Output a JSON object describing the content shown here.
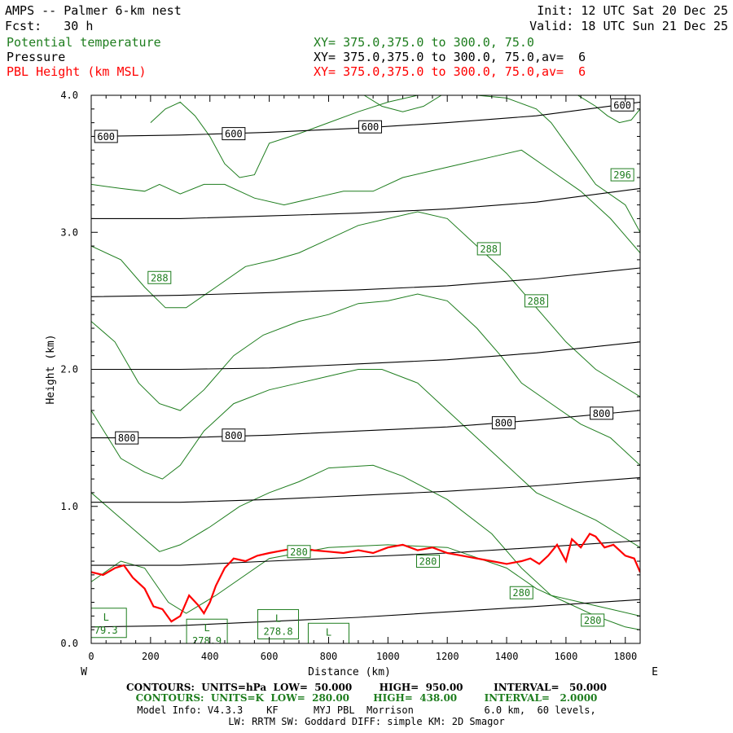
{
  "header": {
    "title": "AMPS -- Palmer 6-km nest",
    "fcst": "Fcst:   30 h",
    "init": "Init: 12 UTC Sat 20 Dec 25",
    "valid": "Valid: 18 UTC Sun 21 Dec 25",
    "field1_name": "Potential temperature",
    "field1_xy": "XY= 375.0,375.0 to 300.0, 75.0",
    "field2_name": "Pressure",
    "field2_xy": "XY= 375.0,375.0 to 300.0, 75.0,av=  6",
    "field3_name": "PBL Height (km MSL)",
    "field3_xy": "XY= 375.0,375.0 to 300.0, 75.0,av=  6"
  },
  "footer": {
    "line1": "CONTOURS:  UNITS=hPa  LOW=  50.000        HIGH=  950.00         INTERVAL=   50.000",
    "line2": "CONTOURS:  UNITS=K  LOW=  280.00       HIGH=  438.00        INTERVAL=   2.0000",
    "line3": "Model Info: V4.3.3    KF      MYJ PBL  Morrison            6.0 km,  60 levels,",
    "line4": "LW: RRTM SW: Goddard DIFF: simple KM: 2D Smagor"
  },
  "colors": {
    "pressure": "#000000",
    "theta": "#1e7d1e",
    "pbl": "#ff0000"
  },
  "chart_data": {
    "type": "line",
    "xlabel": "Distance (km)",
    "ylabel": "Height (km)",
    "xlim": [
      0,
      1850
    ],
    "ylim": [
      0,
      4.0
    ],
    "x_ticks": [
      0,
      200,
      400,
      600,
      800,
      1000,
      1200,
      1400,
      1600,
      1800
    ],
    "x_tick_labels": [
      "0",
      "200",
      "400",
      "600",
      "800",
      "1000",
      "1200",
      "1400",
      "1600",
      "1800"
    ],
    "y_ticks": [
      0,
      1,
      2,
      3,
      4
    ],
    "y_tick_labels": [
      "0.0",
      "1.0",
      "2.0",
      "3.0",
      "4.0"
    ],
    "left_end_label": "W",
    "right_end_label": "E",
    "pressure_contours": [
      {
        "x": [
          0,
          300,
          600,
          900,
          1200,
          1500,
          1850
        ],
        "y": [
          0.12,
          0.13,
          0.16,
          0.19,
          0.23,
          0.27,
          0.32
        ]
      },
      {
        "x": [
          0,
          300,
          600,
          900,
          1200,
          1500,
          1850
        ],
        "y": [
          0.57,
          0.57,
          0.6,
          0.63,
          0.66,
          0.7,
          0.75
        ]
      },
      {
        "x": [
          0,
          300,
          600,
          900,
          1200,
          1500,
          1850
        ],
        "y": [
          1.03,
          1.03,
          1.05,
          1.08,
          1.11,
          1.15,
          1.21
        ]
      },
      {
        "x": [
          0,
          300,
          600,
          900,
          1200,
          1500,
          1850
        ],
        "y": [
          1.5,
          1.5,
          1.52,
          1.55,
          1.58,
          1.63,
          1.7
        ]
      },
      {
        "x": [
          0,
          300,
          600,
          900,
          1200,
          1500,
          1850
        ],
        "y": [
          2.0,
          2.0,
          2.01,
          2.04,
          2.07,
          2.12,
          2.2
        ]
      },
      {
        "x": [
          0,
          300,
          600,
          900,
          1200,
          1500,
          1850
        ],
        "y": [
          2.53,
          2.54,
          2.56,
          2.58,
          2.61,
          2.66,
          2.74
        ]
      },
      {
        "x": [
          0,
          300,
          600,
          900,
          1200,
          1500,
          1850
        ],
        "y": [
          3.1,
          3.1,
          3.12,
          3.14,
          3.17,
          3.22,
          3.32
        ]
      },
      {
        "x": [
          0,
          300,
          600,
          900,
          1200,
          1500,
          1850
        ],
        "y": [
          3.7,
          3.71,
          3.73,
          3.76,
          3.8,
          3.85,
          3.95
        ]
      }
    ],
    "pressure_labels": [
      {
        "text": "600",
        "x": 50,
        "y": 3.7
      },
      {
        "text": "600",
        "x": 480,
        "y": 3.72
      },
      {
        "text": "600",
        "x": 940,
        "y": 3.77
      },
      {
        "text": "600",
        "x": 1790,
        "y": 3.93
      },
      {
        "text": "800",
        "x": 120,
        "y": 1.5
      },
      {
        "text": "800",
        "x": 480,
        "y": 1.52
      },
      {
        "text": "800",
        "x": 1390,
        "y": 1.61
      },
      {
        "text": "800",
        "x": 1720,
        "y": 1.68
      }
    ],
    "theta_contours": [
      {
        "x": [
          0,
          100,
          180,
          260,
          320,
          420,
          600,
          800,
          1000,
          1200,
          1400,
          1500,
          1600,
          1700,
          1800,
          1850
        ],
        "y": [
          0.45,
          0.6,
          0.55,
          0.3,
          0.22,
          0.35,
          0.62,
          0.7,
          0.72,
          0.7,
          0.55,
          0.4,
          0.3,
          0.2,
          0.12,
          0.1
        ]
      },
      {
        "x": [
          0,
          80,
          160,
          230,
          300,
          400,
          500,
          600,
          700,
          800,
          950,
          1050,
          1200,
          1350,
          1450,
          1550,
          1650,
          1750,
          1850
        ],
        "y": [
          1.1,
          0.95,
          0.8,
          0.67,
          0.72,
          0.85,
          1.0,
          1.1,
          1.18,
          1.28,
          1.3,
          1.22,
          1.05,
          0.8,
          0.55,
          0.35,
          0.3,
          0.25,
          0.2
        ]
      },
      {
        "x": [
          0,
          100,
          180,
          240,
          300,
          380,
          480,
          600,
          700,
          800,
          900,
          980,
          1100,
          1200,
          1300,
          1400,
          1500,
          1600,
          1700,
          1850
        ],
        "y": [
          1.7,
          1.35,
          1.25,
          1.2,
          1.3,
          1.55,
          1.75,
          1.85,
          1.9,
          1.95,
          2.0,
          2.0,
          1.9,
          1.7,
          1.5,
          1.3,
          1.1,
          1.0,
          0.9,
          0.7
        ]
      },
      {
        "x": [
          0,
          80,
          160,
          230,
          300,
          380,
          480,
          580,
          700,
          800,
          900,
          1000,
          1100,
          1200,
          1300,
          1380,
          1450,
          1550,
          1650,
          1750,
          1850
        ],
        "y": [
          2.35,
          2.2,
          1.9,
          1.75,
          1.7,
          1.85,
          2.1,
          2.25,
          2.35,
          2.4,
          2.48,
          2.5,
          2.55,
          2.5,
          2.3,
          2.1,
          1.9,
          1.75,
          1.6,
          1.5,
          1.3
        ]
      },
      {
        "x": [
          0,
          100,
          180,
          250,
          320,
          420,
          520,
          620,
          700,
          800,
          900,
          1000,
          1100,
          1200,
          1300,
          1400,
          1500,
          1600,
          1700,
          1850
        ],
        "y": [
          2.9,
          2.8,
          2.6,
          2.45,
          2.45,
          2.6,
          2.75,
          2.8,
          2.85,
          2.95,
          3.05,
          3.1,
          3.15,
          3.1,
          2.9,
          2.7,
          2.45,
          2.2,
          2.0,
          1.8
        ]
      },
      {
        "x": [
          0,
          100,
          180,
          230,
          300,
          380,
          450,
          550,
          650,
          750,
          850,
          950,
          1050,
          1150,
          1250,
          1350,
          1450,
          1550,
          1650,
          1750,
          1850
        ],
        "y": [
          3.35,
          3.32,
          3.3,
          3.35,
          3.28,
          3.35,
          3.35,
          3.25,
          3.2,
          3.25,
          3.3,
          3.3,
          3.4,
          3.45,
          3.5,
          3.55,
          3.6,
          3.45,
          3.3,
          3.1,
          2.85
        ]
      },
      {
        "x": [
          200,
          250,
          300,
          350,
          400,
          450,
          500,
          550,
          600,
          700,
          800,
          900,
          1000,
          1100,
          1200,
          1300,
          1400,
          1500,
          1550,
          1600,
          1650,
          1700,
          1800,
          1850
        ],
        "y": [
          3.8,
          3.9,
          3.95,
          3.85,
          3.7,
          3.5,
          3.4,
          3.42,
          3.65,
          3.72,
          3.8,
          3.88,
          3.95,
          4.0,
          4.0,
          4.0,
          3.98,
          3.9,
          3.8,
          3.65,
          3.5,
          3.35,
          3.2,
          3.0
        ]
      },
      {
        "x": [
          920,
          980,
          1050,
          1120,
          1180
        ],
        "y": [
          4.0,
          3.92,
          3.88,
          3.92,
          4.0
        ]
      },
      {
        "x": [
          1640,
          1700,
          1740,
          1780,
          1820,
          1850
        ],
        "y": [
          4.0,
          3.92,
          3.85,
          3.8,
          3.82,
          3.9
        ]
      }
    ],
    "theta_labels": [
      {
        "text": "296",
        "x": 1790,
        "y": 3.42
      },
      {
        "text": "288",
        "x": 1340,
        "y": 2.88
      },
      {
        "text": "288",
        "x": 230,
        "y": 2.67
      },
      {
        "text": "288",
        "x": 1500,
        "y": 2.5
      },
      {
        "text": "280",
        "x": 700,
        "y": 0.67
      },
      {
        "text": "280",
        "x": 1135,
        "y": 0.6
      },
      {
        "text": "280",
        "x": 1450,
        "y": 0.37
      },
      {
        "text": "280",
        "x": 1690,
        "y": 0.17
      }
    ],
    "low_labels": [
      {
        "letter": "L",
        "value": "79.3",
        "x": 50,
        "y": 0.15
      },
      {
        "letter": "L",
        "value": "278.9",
        "x": 390,
        "y": 0.07
      },
      {
        "letter": "L",
        "value": "278.8",
        "x": 630,
        "y": 0.14
      },
      {
        "letter": "L",
        "value": "",
        "x": 800,
        "y": 0.04
      }
    ],
    "pbl_height": {
      "x": [
        0,
        40,
        80,
        110,
        140,
        180,
        210,
        240,
        270,
        300,
        330,
        360,
        380,
        400,
        420,
        450,
        480,
        520,
        560,
        600,
        650,
        700,
        750,
        800,
        850,
        900,
        950,
        1000,
        1050,
        1100,
        1150,
        1200,
        1250,
        1300,
        1350,
        1400,
        1450,
        1480,
        1510,
        1540,
        1570,
        1600,
        1620,
        1650,
        1680,
        1700,
        1730,
        1760,
        1800,
        1830,
        1850
      ],
      "y": [
        0.52,
        0.5,
        0.55,
        0.57,
        0.48,
        0.4,
        0.27,
        0.25,
        0.16,
        0.2,
        0.35,
        0.28,
        0.22,
        0.3,
        0.42,
        0.55,
        0.62,
        0.6,
        0.64,
        0.66,
        0.68,
        0.7,
        0.68,
        0.67,
        0.66,
        0.68,
        0.66,
        0.7,
        0.72,
        0.68,
        0.7,
        0.66,
        0.64,
        0.62,
        0.6,
        0.58,
        0.6,
        0.62,
        0.58,
        0.64,
        0.72,
        0.6,
        0.76,
        0.7,
        0.8,
        0.78,
        0.7,
        0.72,
        0.64,
        0.62,
        0.52
      ]
    }
  }
}
